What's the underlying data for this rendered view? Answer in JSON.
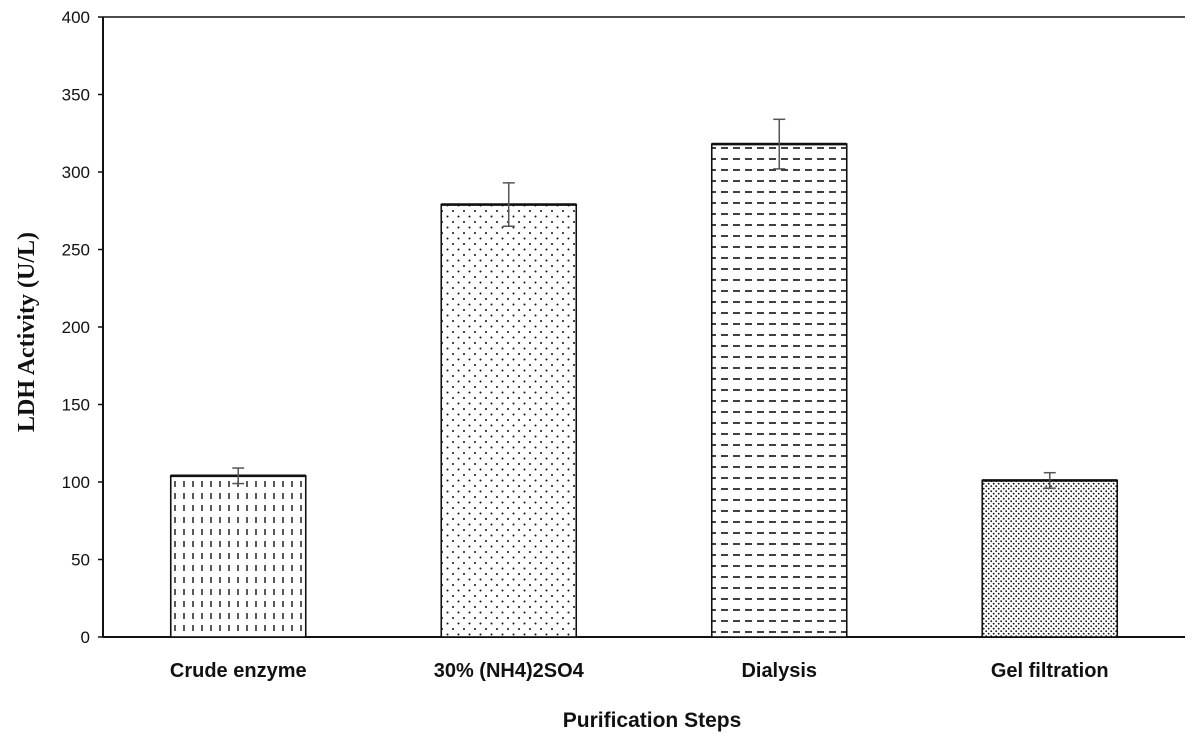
{
  "chart_data": {
    "type": "bar",
    "categories": [
      "Crude enzyme",
      "30% (NH4)2SO4",
      "Dialysis",
      "Gel filtration"
    ],
    "values": [
      104,
      279,
      318,
      101
    ],
    "errors": [
      5,
      14,
      16,
      5
    ],
    "patterns": [
      "vertical-dashes",
      "sparse-dots",
      "horizontal-dashes",
      "dense-dots"
    ],
    "title": "",
    "xlabel": "Purification Steps",
    "ylabel": "LDH Activity (U/L)",
    "ylim": [
      0,
      400
    ],
    "yticks": [
      0,
      50,
      100,
      150,
      200,
      250,
      300,
      350,
      400
    ],
    "grid": false,
    "bar_fill": "#ffffff",
    "ink_color": "#111111"
  }
}
